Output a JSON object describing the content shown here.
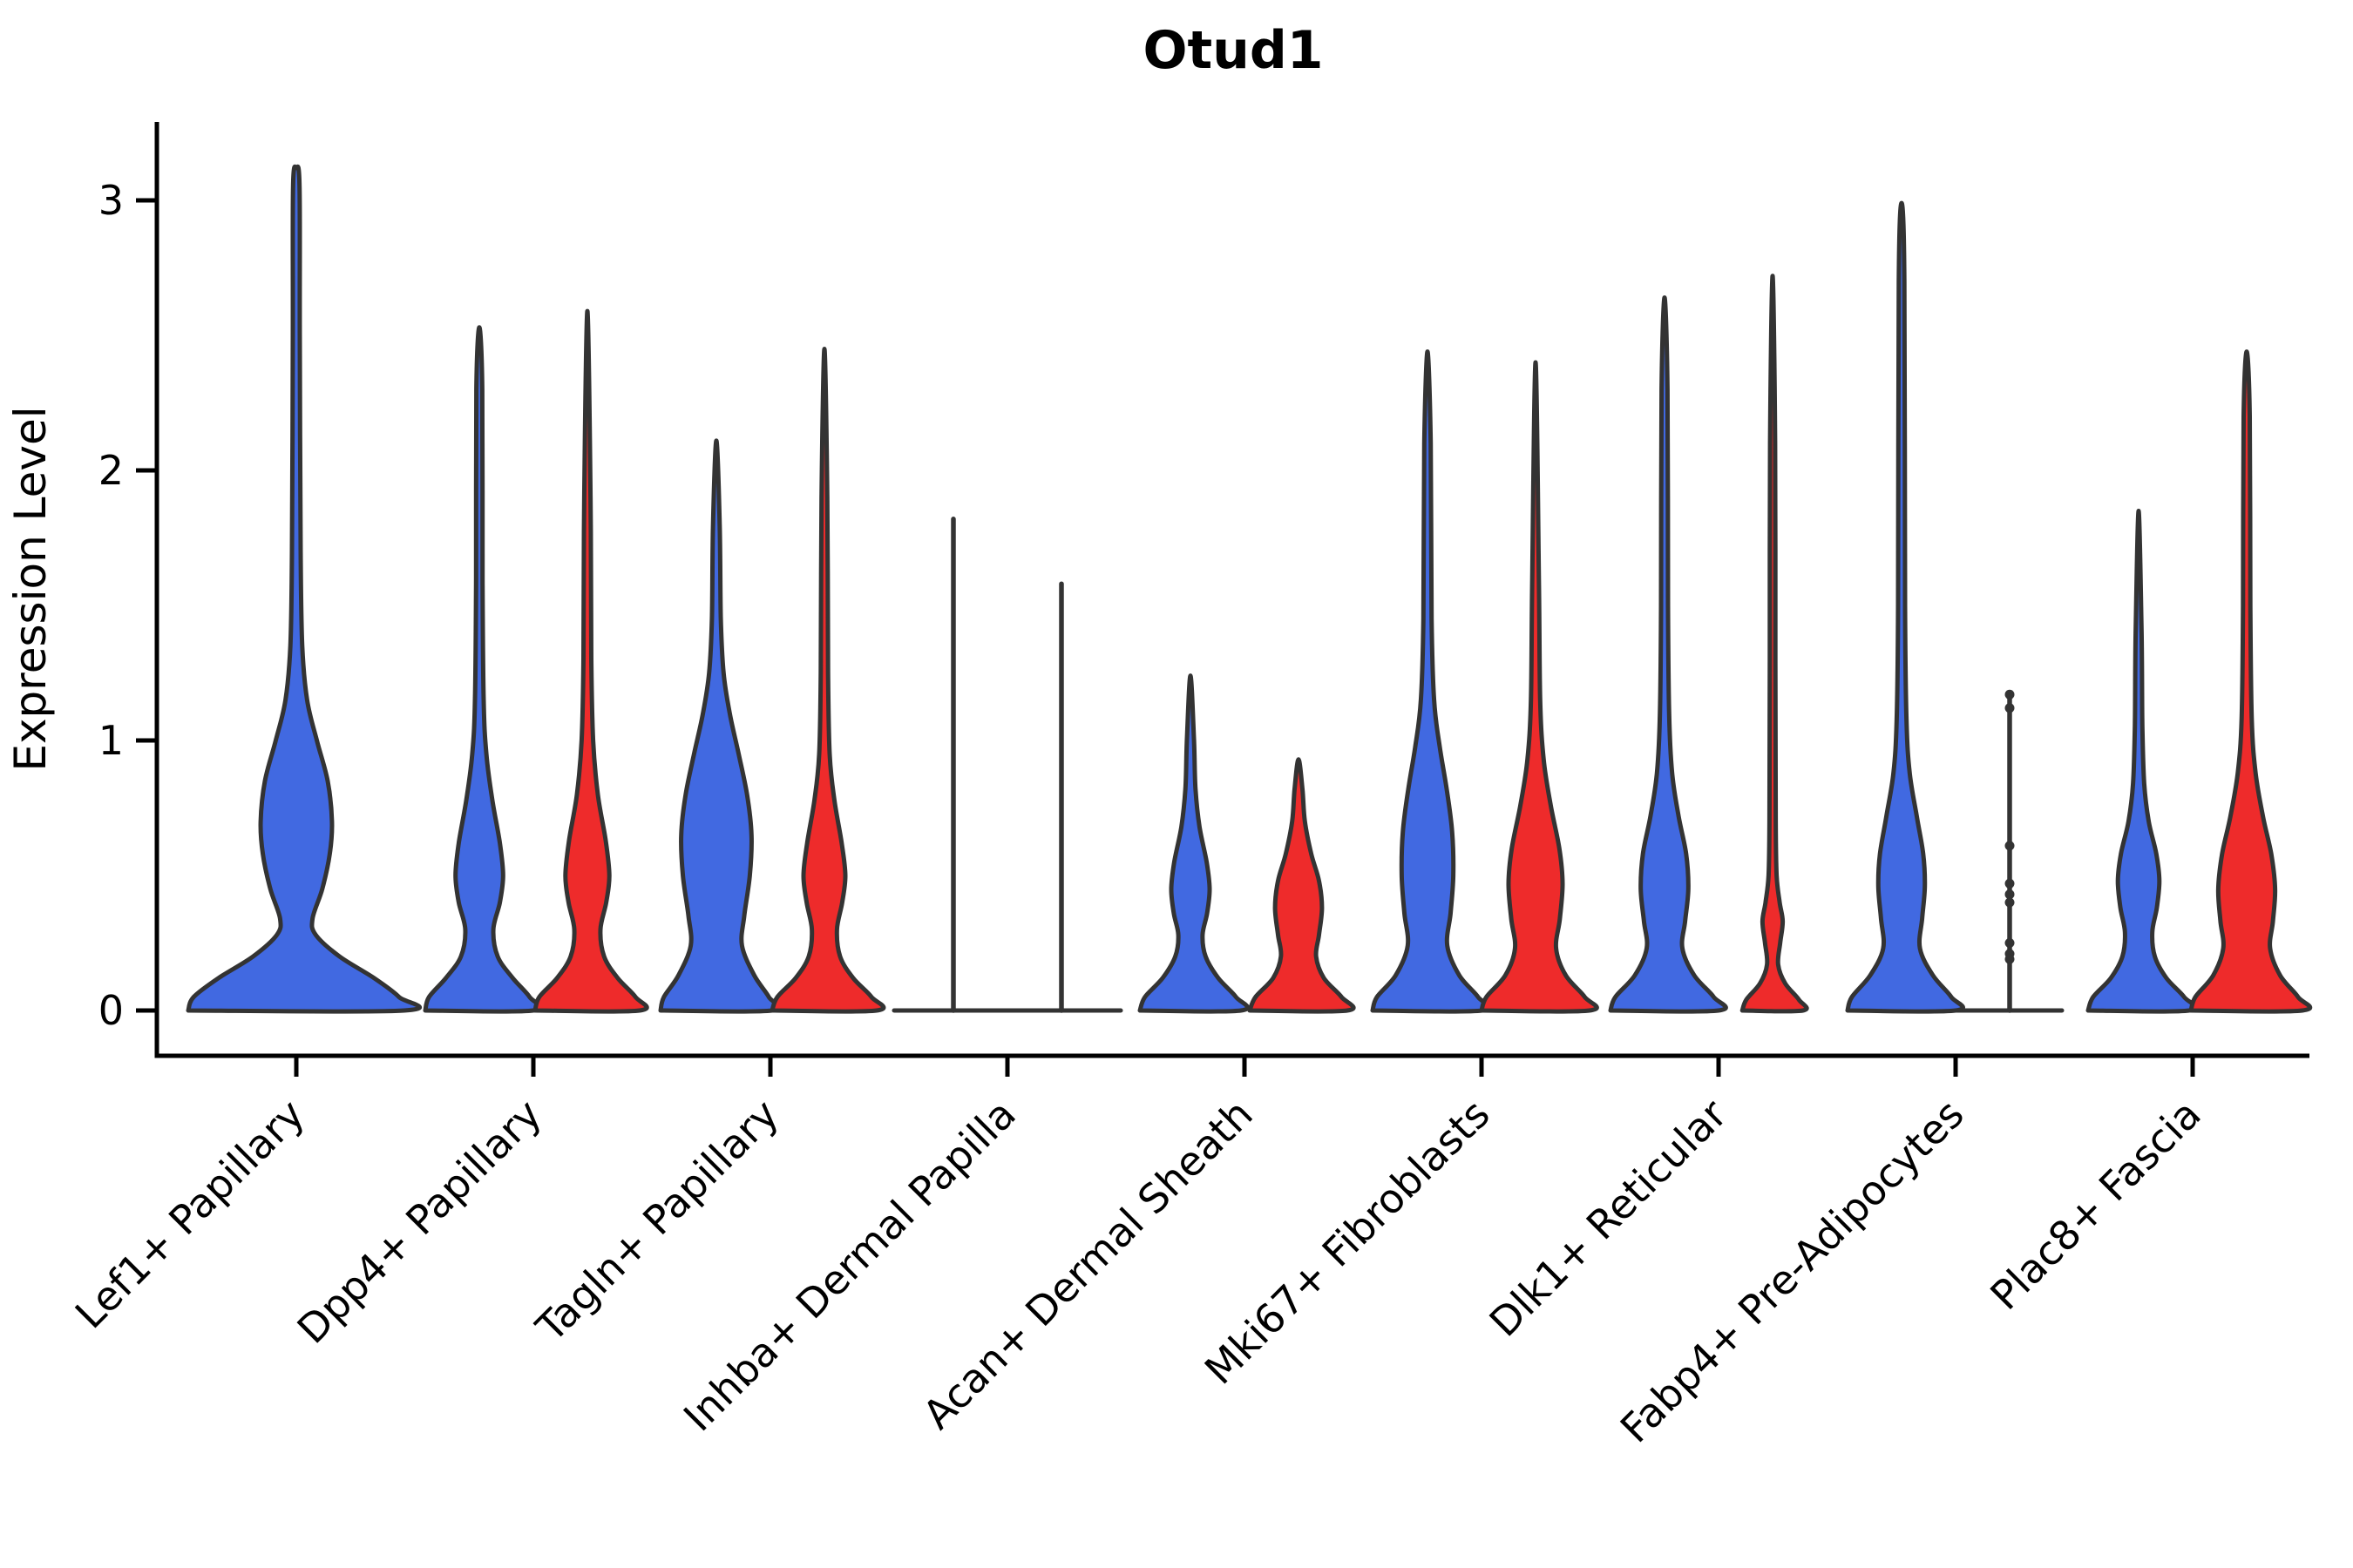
{
  "title": "Otud1",
  "axes": {
    "ylabel": "Expression Level",
    "yticks": [
      0,
      1,
      2,
      3
    ],
    "ylim": [
      0,
      3.3
    ],
    "grid": false,
    "legend": "none"
  },
  "colors": {
    "blue_fill": "#4169E1",
    "red_fill": "#EE2B2B",
    "violin_stroke": "#333333",
    "axis_color": "#000000",
    "background": "#ffffff"
  },
  "chart_data": {
    "type": "violin",
    "title": "Otud1",
    "xlabel": "",
    "ylabel": "Expression Level",
    "ylim": [
      0,
      3.3
    ],
    "categories": [
      "Lef1+ Papillary",
      "Dpp4+ Papillary",
      "Tagln+ Papillary",
      "Inhba+ Dermal Papilla",
      "Acan+ Dermal Sheath",
      "Mki67+ Fibroblasts",
      "Dlk1+ Reticular",
      "Fabp4+ Pre-Adipocytes",
      "Plac8+ Fascia"
    ],
    "series": [
      {
        "cat": 0,
        "color": "blue",
        "side": "center",
        "shape": "violin",
        "max": 3.12,
        "halfwidth": 124,
        "profile": [
          [
            0,
            1.0
          ],
          [
            0.05,
            0.95
          ],
          [
            0.12,
            0.72
          ],
          [
            0.2,
            0.4
          ],
          [
            0.28,
            0.18
          ],
          [
            0.34,
            0.15
          ],
          [
            0.45,
            0.24
          ],
          [
            0.58,
            0.31
          ],
          [
            0.7,
            0.33
          ],
          [
            0.85,
            0.29
          ],
          [
            1.0,
            0.19
          ],
          [
            1.15,
            0.1
          ],
          [
            1.35,
            0.055
          ],
          [
            1.7,
            0.04
          ],
          [
            2.5,
            0.032
          ],
          [
            3.05,
            0.03
          ],
          [
            3.12,
            0
          ]
        ]
      },
      {
        "cat": 1,
        "color": "blue",
        "side": "left",
        "shape": "violin",
        "max": 2.53,
        "halfwidth": 62,
        "profile": [
          [
            0,
            1
          ],
          [
            0.05,
            0.93
          ],
          [
            0.12,
            0.62
          ],
          [
            0.2,
            0.34
          ],
          [
            0.3,
            0.26
          ],
          [
            0.4,
            0.38
          ],
          [
            0.5,
            0.44
          ],
          [
            0.62,
            0.38
          ],
          [
            0.78,
            0.24
          ],
          [
            0.95,
            0.13
          ],
          [
            1.15,
            0.08
          ],
          [
            1.6,
            0.06
          ],
          [
            2.3,
            0.055
          ],
          [
            2.53,
            0
          ]
        ]
      },
      {
        "cat": 1,
        "color": "red",
        "side": "right",
        "shape": "violin",
        "max": 2.59,
        "halfwidth": 60,
        "profile": [
          [
            0,
            1
          ],
          [
            0.05,
            0.92
          ],
          [
            0.12,
            0.58
          ],
          [
            0.2,
            0.32
          ],
          [
            0.3,
            0.25
          ],
          [
            0.4,
            0.36
          ],
          [
            0.5,
            0.42
          ],
          [
            0.63,
            0.35
          ],
          [
            0.8,
            0.2
          ],
          [
            1.0,
            0.11
          ],
          [
            1.3,
            0.075
          ],
          [
            1.9,
            0.06
          ],
          [
            2.59,
            0
          ]
        ]
      },
      {
        "cat": 2,
        "color": "blue",
        "side": "left",
        "shape": "violin",
        "max": 2.11,
        "halfwidth": 64,
        "profile": [
          [
            0,
            1
          ],
          [
            0.05,
            0.94
          ],
          [
            0.13,
            0.68
          ],
          [
            0.24,
            0.46
          ],
          [
            0.35,
            0.5
          ],
          [
            0.5,
            0.6
          ],
          [
            0.65,
            0.63
          ],
          [
            0.8,
            0.55
          ],
          [
            0.95,
            0.4
          ],
          [
            1.1,
            0.24
          ],
          [
            1.25,
            0.13
          ],
          [
            1.45,
            0.08
          ],
          [
            1.8,
            0.06
          ],
          [
            2.11,
            0
          ]
        ]
      },
      {
        "cat": 2,
        "color": "red",
        "side": "right",
        "shape": "violin",
        "max": 2.45,
        "halfwidth": 60,
        "profile": [
          [
            0,
            1
          ],
          [
            0.05,
            0.9
          ],
          [
            0.12,
            0.55
          ],
          [
            0.2,
            0.3
          ],
          [
            0.3,
            0.24
          ],
          [
            0.4,
            0.34
          ],
          [
            0.5,
            0.4
          ],
          [
            0.62,
            0.33
          ],
          [
            0.78,
            0.19
          ],
          [
            0.95,
            0.1
          ],
          [
            1.25,
            0.07
          ],
          [
            1.9,
            0.055
          ],
          [
            2.45,
            0
          ]
        ]
      },
      {
        "cat": 3,
        "color": "blue",
        "side": "left",
        "shape": "line",
        "max": 1.82
      },
      {
        "cat": 3,
        "color": "red",
        "side": "right",
        "shape": "line",
        "max": 1.58
      },
      {
        "cat": 4,
        "color": "blue",
        "side": "left",
        "shape": "violin",
        "max": 1.24,
        "halfwidth": 58,
        "profile": [
          [
            0,
            1
          ],
          [
            0.05,
            0.9
          ],
          [
            0.12,
            0.55
          ],
          [
            0.2,
            0.3
          ],
          [
            0.28,
            0.24
          ],
          [
            0.36,
            0.33
          ],
          [
            0.45,
            0.38
          ],
          [
            0.55,
            0.32
          ],
          [
            0.68,
            0.18
          ],
          [
            0.82,
            0.1
          ],
          [
            1.0,
            0.07
          ],
          [
            1.24,
            0
          ]
        ]
      },
      {
        "cat": 4,
        "color": "red",
        "side": "right",
        "shape": "violin",
        "max": 0.93,
        "halfwidth": 56,
        "profile": [
          [
            0,
            1
          ],
          [
            0.05,
            0.88
          ],
          [
            0.12,
            0.52
          ],
          [
            0.2,
            0.36
          ],
          [
            0.28,
            0.42
          ],
          [
            0.38,
            0.48
          ],
          [
            0.48,
            0.42
          ],
          [
            0.58,
            0.26
          ],
          [
            0.7,
            0.13
          ],
          [
            0.82,
            0.08
          ],
          [
            0.93,
            0
          ]
        ]
      },
      {
        "cat": 5,
        "color": "blue",
        "side": "left",
        "shape": "violin",
        "max": 2.44,
        "halfwidth": 63,
        "profile": [
          [
            0,
            1
          ],
          [
            0.05,
            0.92
          ],
          [
            0.13,
            0.58
          ],
          [
            0.24,
            0.36
          ],
          [
            0.36,
            0.42
          ],
          [
            0.5,
            0.47
          ],
          [
            0.66,
            0.45
          ],
          [
            0.82,
            0.35
          ],
          [
            0.98,
            0.22
          ],
          [
            1.15,
            0.12
          ],
          [
            1.45,
            0.075
          ],
          [
            2.1,
            0.058
          ],
          [
            2.44,
            0
          ]
        ]
      },
      {
        "cat": 5,
        "color": "red",
        "side": "right",
        "shape": "violin",
        "max": 2.4,
        "halfwidth": 62,
        "profile": [
          [
            0,
            1
          ],
          [
            0.05,
            0.91
          ],
          [
            0.13,
            0.56
          ],
          [
            0.23,
            0.38
          ],
          [
            0.34,
            0.45
          ],
          [
            0.47,
            0.5
          ],
          [
            0.6,
            0.44
          ],
          [
            0.76,
            0.28
          ],
          [
            0.93,
            0.15
          ],
          [
            1.15,
            0.085
          ],
          [
            1.6,
            0.062
          ],
          [
            2.4,
            0
          ]
        ]
      },
      {
        "cat": 6,
        "color": "blue",
        "side": "left",
        "shape": "violin",
        "max": 2.64,
        "halfwidth": 62,
        "profile": [
          [
            0,
            1
          ],
          [
            0.05,
            0.91
          ],
          [
            0.13,
            0.55
          ],
          [
            0.23,
            0.33
          ],
          [
            0.33,
            0.38
          ],
          [
            0.45,
            0.44
          ],
          [
            0.58,
            0.4
          ],
          [
            0.72,
            0.26
          ],
          [
            0.88,
            0.14
          ],
          [
            1.1,
            0.085
          ],
          [
            1.5,
            0.065
          ],
          [
            2.3,
            0.055
          ],
          [
            2.64,
            0
          ]
        ]
      },
      {
        "cat": 6,
        "color": "red",
        "side": "right",
        "shape": "violin",
        "max": 2.72,
        "halfwidth": 58,
        "profile": [
          [
            0,
            0.6
          ],
          [
            0.04,
            0.52
          ],
          [
            0.1,
            0.25
          ],
          [
            0.17,
            0.11
          ],
          [
            0.25,
            0.15
          ],
          [
            0.33,
            0.2
          ],
          [
            0.4,
            0.14
          ],
          [
            0.5,
            0.08
          ],
          [
            0.7,
            0.062
          ],
          [
            1.3,
            0.055
          ],
          [
            2.1,
            0.05
          ],
          [
            2.72,
            0
          ]
        ]
      },
      {
        "cat": 7,
        "color": "blue",
        "side": "left",
        "shape": "violin",
        "max": 2.99,
        "halfwidth": 62,
        "profile": [
          [
            0,
            1
          ],
          [
            0.05,
            0.92
          ],
          [
            0.13,
            0.58
          ],
          [
            0.23,
            0.34
          ],
          [
            0.34,
            0.38
          ],
          [
            0.46,
            0.43
          ],
          [
            0.58,
            0.4
          ],
          [
            0.72,
            0.28
          ],
          [
            0.88,
            0.15
          ],
          [
            1.08,
            0.09
          ],
          [
            1.5,
            0.065
          ],
          [
            2.7,
            0.052
          ],
          [
            2.99,
            0
          ]
        ]
      },
      {
        "cat": 7,
        "color": "red",
        "side": "right",
        "shape": "line",
        "max": 1.17,
        "points": [
          1.17,
          1.12,
          0.61,
          0.47,
          0.43,
          0.4,
          0.25,
          0.21,
          0.19
        ]
      },
      {
        "cat": 8,
        "color": "blue",
        "side": "left",
        "shape": "violin",
        "max": 1.85,
        "halfwidth": 58,
        "profile": [
          [
            0,
            1
          ],
          [
            0.05,
            0.9
          ],
          [
            0.12,
            0.55
          ],
          [
            0.2,
            0.32
          ],
          [
            0.29,
            0.27
          ],
          [
            0.38,
            0.36
          ],
          [
            0.48,
            0.41
          ],
          [
            0.58,
            0.35
          ],
          [
            0.7,
            0.2
          ],
          [
            0.84,
            0.11
          ],
          [
            1.05,
            0.075
          ],
          [
            1.4,
            0.058
          ],
          [
            1.85,
            0
          ]
        ]
      },
      {
        "cat": 8,
        "color": "red",
        "side": "right",
        "shape": "violin",
        "max": 2.44,
        "halfwidth": 64,
        "profile": [
          [
            0,
            1
          ],
          [
            0.05,
            0.92
          ],
          [
            0.13,
            0.6
          ],
          [
            0.23,
            0.42
          ],
          [
            0.33,
            0.47
          ],
          [
            0.45,
            0.51
          ],
          [
            0.58,
            0.44
          ],
          [
            0.72,
            0.29
          ],
          [
            0.88,
            0.16
          ],
          [
            1.08,
            0.09
          ],
          [
            1.5,
            0.066
          ],
          [
            2.2,
            0.055
          ],
          [
            2.44,
            0
          ]
        ]
      }
    ],
    "flat_baselines": [
      {
        "cat": 3,
        "halfspan": 130
      },
      {
        "cat": 7,
        "halfspan": 122
      }
    ]
  }
}
